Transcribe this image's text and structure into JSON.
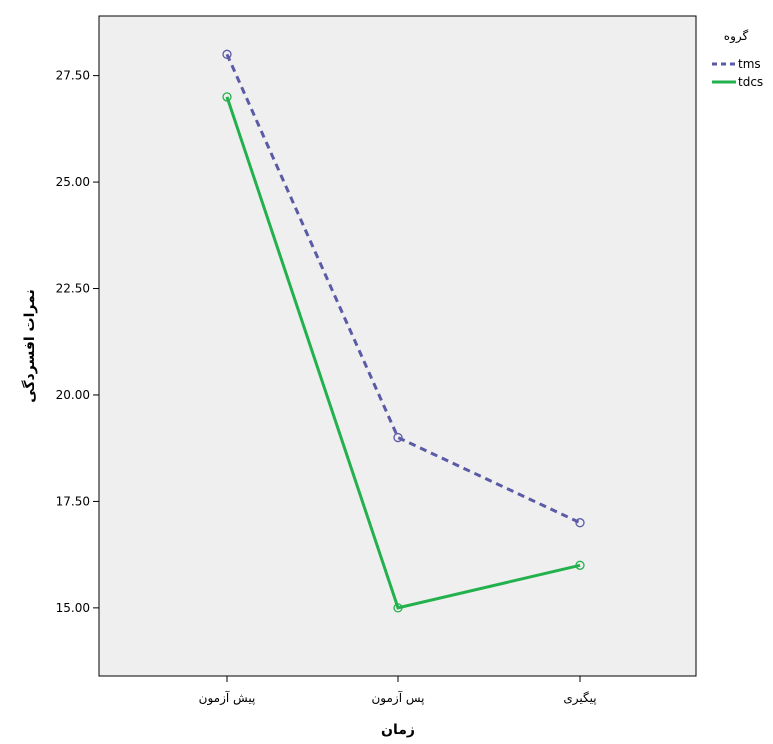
{
  "chart_data": {
    "type": "line",
    "categories": [
      "پیش آزمون",
      "پس آزمون",
      "پیگیری"
    ],
    "series": [
      {
        "name": "tms",
        "values": [
          28.0,
          19.0,
          17.0
        ],
        "color": "#5a5aa6",
        "dash": true
      },
      {
        "name": "tdcs",
        "values": [
          27.0,
          15.0,
          16.0
        ],
        "color": "#22b14c",
        "dash": false
      }
    ],
    "xlabel": "زمان",
    "ylabel": "نمرات افسردگی",
    "yticks": [
      "15.00",
      "17.50",
      "20.00",
      "22.50",
      "25.00",
      "27.50"
    ],
    "ylim": [
      13.4,
      28.9
    ],
    "legend_title": "گروه",
    "legend_position": "top-right",
    "grid": false,
    "plot_background": "#efefef"
  }
}
